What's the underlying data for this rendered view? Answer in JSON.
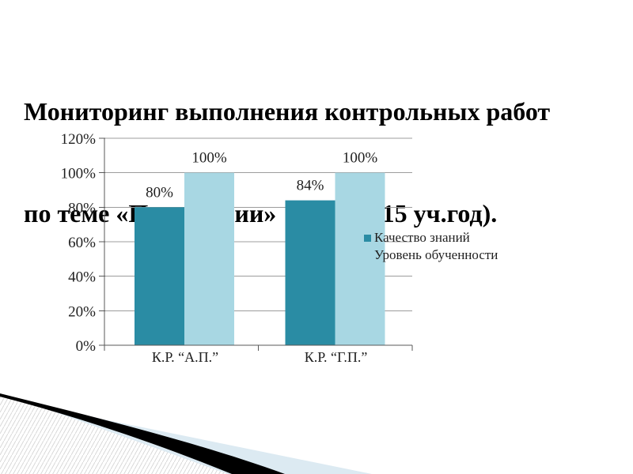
{
  "slide": {
    "title_line1": "Мониторинг выполнения контрольных работ",
    "title_line2": "по теме «Прогрессии»  (2014-2015 уч.год)."
  },
  "chart_data": {
    "type": "bar",
    "title": "",
    "categories": [
      "К.Р. “А.П.”",
      "К.Р. “Г.П.”"
    ],
    "series": [
      {
        "name": "Качество знаний",
        "values": [
          80,
          84
        ],
        "data_labels": [
          "80%",
          "84%"
        ],
        "color": "#2A8CA4"
      },
      {
        "name": "Уровень обученности",
        "values": [
          100,
          100
        ],
        "data_labels": [
          "100%",
          "100%"
        ],
        "color": "#A8D7E3"
      }
    ],
    "xlabel": "",
    "ylabel": "",
    "ylim": [
      0,
      120
    ],
    "y_step": 20,
    "ylabel_ticks": [
      "0%",
      "20%",
      "40%",
      "60%",
      "80%",
      "100%",
      "120%"
    ],
    "grid": true,
    "legend_position": "middle-right"
  },
  "colors": {
    "series1": "#2A8CA4",
    "series2": "#A8D7E3",
    "gridline": "#9c9c9c",
    "axis": "#595959",
    "text": "#1f1f1f",
    "decor_blue": "#dceaf2",
    "decor_black": "#000000",
    "decor_hatch": "#d8d8d8"
  }
}
